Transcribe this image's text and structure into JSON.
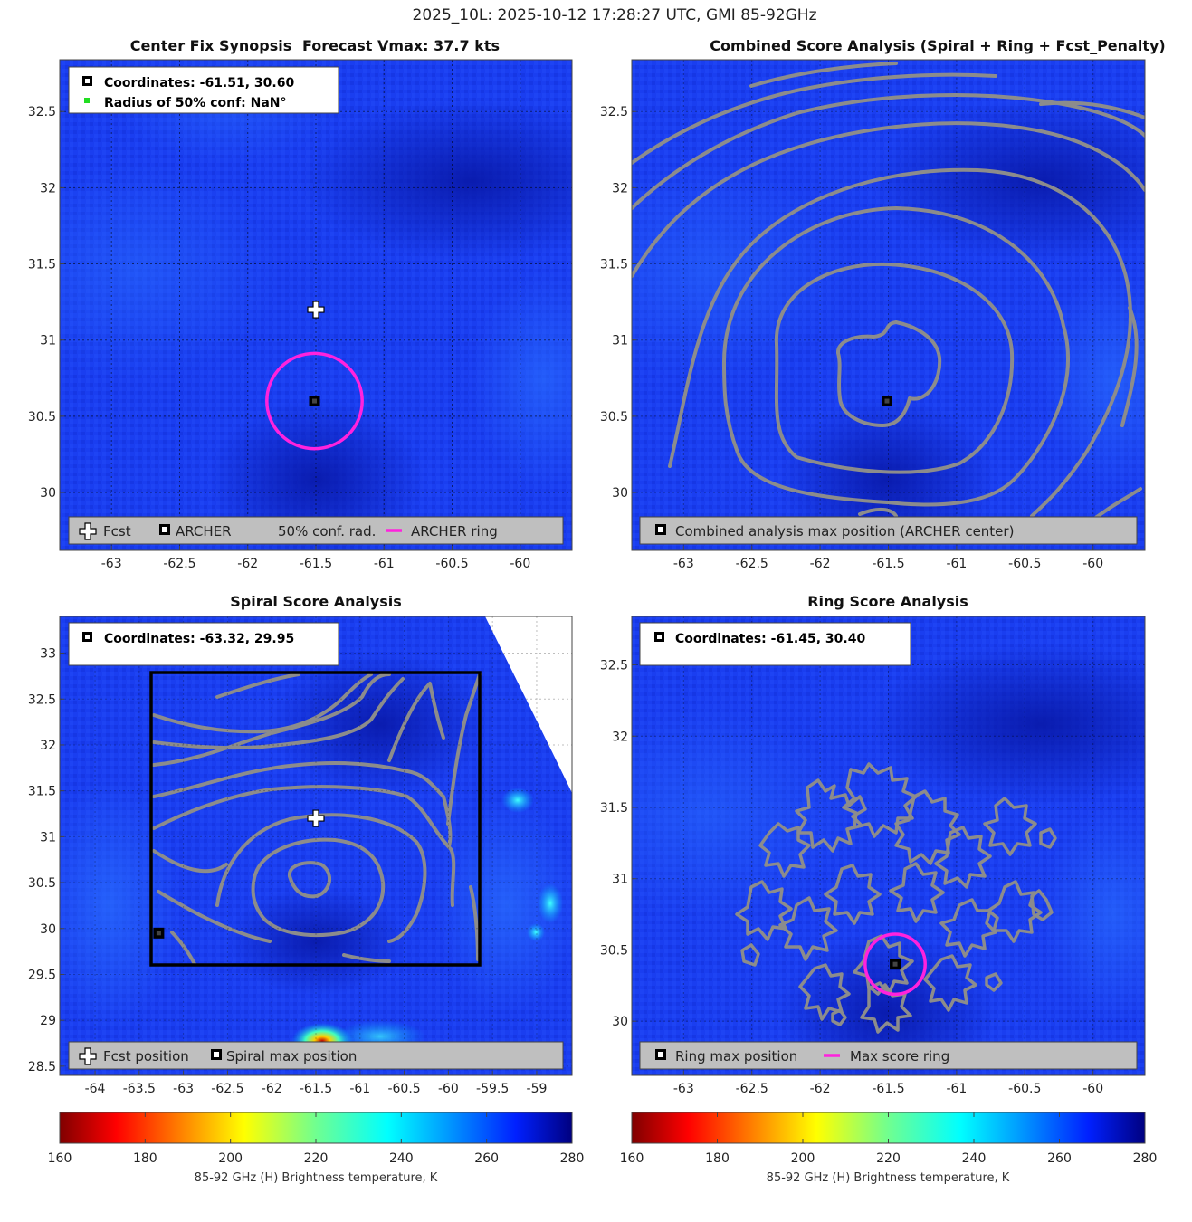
{
  "figure_title": "2025_10L: 2025-10-12 17:28:27 UTC, GMI 85-92GHz",
  "colors": {
    "ring": "#ff22dd",
    "contour": "#8c8c8c",
    "legend_bg": "#bfbfbf",
    "conf_marker": "#22dd22"
  },
  "panels": {
    "center_fix": {
      "title": "Center Fix Synopsis",
      "subtitle": "Forecast Vmax: 37.7 kts",
      "info_coords": "Coordinates: -61.51, 30.60",
      "info_radius": "Radius of 50% conf: NaN°",
      "legend": [
        "Fcst",
        "ARCHER",
        "50% conf. rad.",
        "ARCHER ring"
      ]
    },
    "combined": {
      "title": "Combined Score Analysis (Spiral + Ring + Fcst_Penalty)",
      "legend": [
        "Combined analysis max position (ARCHER center)"
      ]
    },
    "spiral": {
      "title": "Spiral Score Analysis",
      "info_coords": "Coordinates: -63.32, 29.95",
      "legend": [
        "Fcst position",
        "Spiral max position"
      ]
    },
    "ring": {
      "title": "Ring Score Analysis",
      "info_coords": "Coordinates: -61.45, 30.40",
      "legend": [
        "Ring max position",
        "Max score ring"
      ]
    }
  },
  "colorbar": {
    "label": "85-92 GHz (H) Brightness temperature, K",
    "ticks": [
      "160",
      "180",
      "200",
      "220",
      "240",
      "260",
      "280"
    ]
  },
  "chart_data": [
    {
      "type": "heatmap",
      "title": "Center Fix Synopsis",
      "xlim": [
        -63.38,
        -59.62
      ],
      "ylim": [
        29.62,
        32.84
      ],
      "xticks": [
        -63,
        -62.5,
        -62,
        -61.5,
        -61,
        -60.5,
        -60
      ],
      "yticks": [
        30,
        30.5,
        31,
        31.5,
        32,
        32.5
      ],
      "xtick_labels": [
        "-63",
        "-62.5",
        "-62",
        "-61.5",
        "-61",
        "-60.5",
        "-60"
      ],
      "ytick_labels": [
        "30",
        "30.5",
        "31",
        "31.5",
        "32",
        "32.5"
      ],
      "fcst_position": [
        -61.5,
        31.2
      ],
      "archer_center": [
        -61.51,
        30.6
      ],
      "archer_ring_radius_deg": 0.35,
      "field_range_K": [
        255,
        275
      ]
    },
    {
      "type": "heatmap",
      "title": "Combined Score Analysis (Spiral + Ring + Fcst_Penalty)",
      "xlim": [
        -63.38,
        -59.62
      ],
      "ylim": [
        29.62,
        32.84
      ],
      "xticks": [
        -63,
        -62.5,
        -62,
        -61.5,
        -61,
        -60.5,
        -60
      ],
      "yticks": [
        30,
        30.5,
        31,
        31.5,
        32,
        32.5
      ],
      "xtick_labels": [
        "-63",
        "-62.5",
        "-62",
        "-61.5",
        "-61",
        "-60.5",
        "-60"
      ],
      "ytick_labels": [
        "30",
        "30.5",
        "31",
        "31.5",
        "32",
        "32.5"
      ],
      "max_position": [
        -61.51,
        30.6
      ],
      "contours": "concentric score contours around max position"
    },
    {
      "type": "heatmap",
      "title": "Spiral Score Analysis",
      "xlim": [
        -64.4,
        -58.6
      ],
      "ylim": [
        28.4,
        33.4
      ],
      "xticks": [
        -64,
        -63.5,
        -63,
        -62.5,
        -62,
        -61.5,
        -61,
        -60.5,
        -60,
        -59.5,
        -59
      ],
      "yticks": [
        28.5,
        29,
        29.5,
        30,
        30.5,
        31,
        31.5,
        32,
        32.5,
        33
      ],
      "xtick_labels": [
        "-64",
        "-63.5",
        "-63",
        "-62.5",
        "-62",
        "-61.5",
        "-61",
        "-60.5",
        "-60",
        "-59.5",
        "-59"
      ],
      "ytick_labels": [
        "28.5",
        "29",
        "29.5",
        "30",
        "30.5",
        "31",
        "31.5",
        "32",
        "32.5",
        "33"
      ],
      "search_box": {
        "x": [
          -63.4,
          -59.65
        ],
        "y": [
          29.6,
          32.8
        ]
      },
      "fcst_position": [
        -61.5,
        31.2
      ],
      "spiral_max_position": [
        -63.32,
        29.95
      ],
      "cold_spot_K": 175,
      "cold_spot_position": [
        -61.45,
        28.55
      ]
    },
    {
      "type": "heatmap",
      "title": "Ring Score Analysis",
      "xlim": [
        -63.38,
        -59.62
      ],
      "ylim": [
        29.62,
        32.84
      ],
      "xticks": [
        -63,
        -62.5,
        -62,
        -61.5,
        -61,
        -60.5,
        -60
      ],
      "yticks": [
        30,
        30.5,
        31,
        31.5,
        32,
        32.5
      ],
      "xtick_labels": [
        "-63",
        "-62.5",
        "-62",
        "-61.5",
        "-61",
        "-60.5",
        "-60"
      ],
      "ytick_labels": [
        "30",
        "30.5",
        "31",
        "31.5",
        "32",
        "32.5"
      ],
      "ring_max_position": [
        -61.45,
        30.4
      ],
      "max_score_ring_radius_deg": 0.22
    },
    {
      "type": "colorbar",
      "range_K": [
        160,
        280
      ],
      "colormap": "jet (reversed)"
    }
  ]
}
